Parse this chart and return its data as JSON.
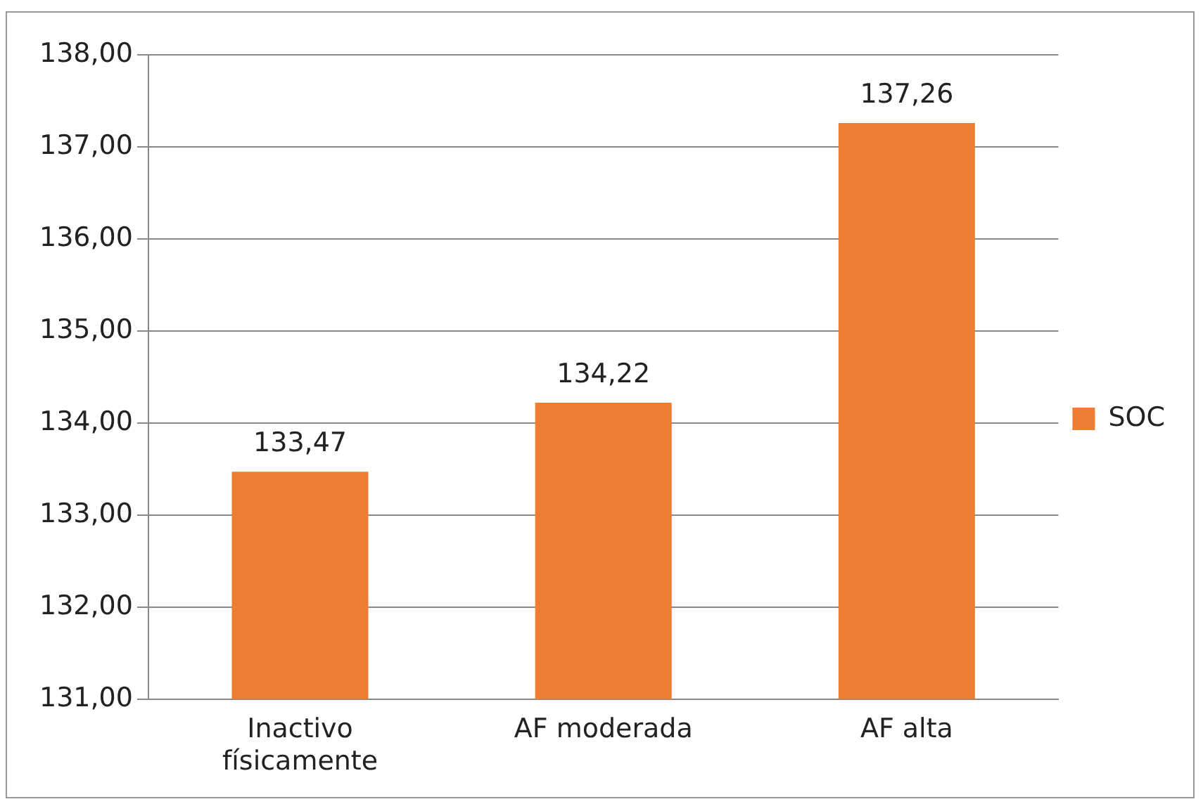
{
  "chart_data": {
    "type": "bar",
    "categories": [
      "Inactivo físicamente",
      "AF moderada",
      "AF alta"
    ],
    "series": [
      {
        "name": "SOC",
        "color": "#ed7d31",
        "values": [
          133.47,
          134.22,
          137.26
        ],
        "value_labels": [
          "133,47",
          "134,22",
          "137,26"
        ]
      }
    ],
    "ylim": [
      131,
      138
    ],
    "yticks": [
      {
        "value": 131,
        "label": "131,00"
      },
      {
        "value": 132,
        "label": "132,00"
      },
      {
        "value": 133,
        "label": "133,00"
      },
      {
        "value": 134,
        "label": "134,00"
      },
      {
        "value": 135,
        "label": "135,00"
      },
      {
        "value": 136,
        "label": "136,00"
      },
      {
        "value": 137,
        "label": "137,00"
      },
      {
        "value": 138,
        "label": "138,00"
      }
    ],
    "grid": "y",
    "legend": "right"
  }
}
